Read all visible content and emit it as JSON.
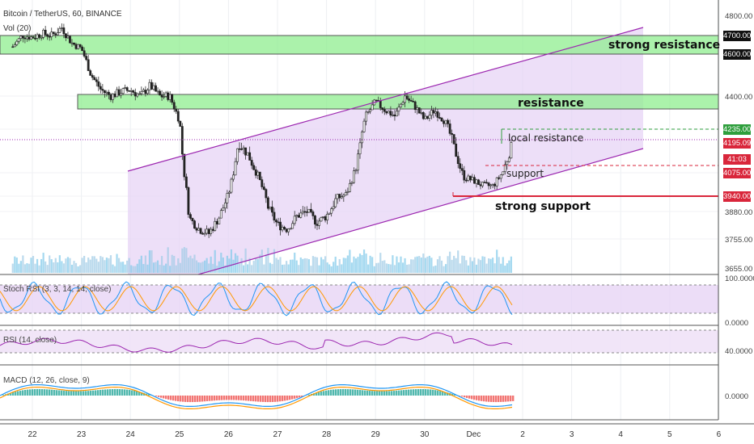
{
  "header": {
    "title": "Bitcoin / TetherUS, 60, BINANCE",
    "volume_label": "Vol (20)"
  },
  "chart_data": [
    {
      "type": "candlestick",
      "title": "Bitcoin / TetherUS, 60, BINANCE",
      "x_ticks": [
        "22",
        "23",
        "24",
        "25",
        "26",
        "27",
        "28",
        "29",
        "30",
        "Dec",
        "2",
        "3",
        "4",
        "5",
        "6"
      ],
      "y_ticks": [
        4800,
        4700,
        4600,
        4400,
        4235,
        4195.09,
        4075,
        3940,
        3880,
        3755,
        3655
      ],
      "ylim": [
        3620,
        4850
      ],
      "price_tags": [
        {
          "value": "4700.00",
          "color": "#111111"
        },
        {
          "value": "4600.00",
          "color": "#111111"
        },
        {
          "value": "4235.00",
          "color": "#2e9e3c"
        },
        {
          "value": "4195.09",
          "color": "#d9263b"
        },
        {
          "value": "41:03",
          "color": "#d9263b"
        },
        {
          "value": "4075.00",
          "color": "#d9263b"
        },
        {
          "value": "3940.00",
          "color": "#d9263b"
        }
      ],
      "zones": [
        {
          "label": "strong resistance",
          "low": 4600,
          "high": 4700,
          "color": "#90ee90"
        },
        {
          "label": "resistance",
          "low": 4360,
          "high": 4410,
          "color": "#90ee90"
        }
      ],
      "levels": [
        {
          "label": "local resistance",
          "value": 4235,
          "color": "#2e9e3c",
          "style": "dashed"
        },
        {
          "label": "support",
          "value": 4075,
          "color": "#d9263b",
          "style": "dashed"
        },
        {
          "label": "strong support",
          "value": 3940,
          "color": "#d9263b",
          "style": "solid"
        }
      ],
      "close_price": "4195.09",
      "close_approx": [
        [
          21.6,
          4640
        ],
        [
          21.8,
          4700
        ],
        [
          22.0,
          4690
        ],
        [
          22.2,
          4710
        ],
        [
          22.4,
          4700
        ],
        [
          22.6,
          4740
        ],
        [
          22.8,
          4660
        ],
        [
          23.0,
          4630
        ],
        [
          23.2,
          4500
        ],
        [
          23.4,
          4430
        ],
        [
          23.6,
          4400
        ],
        [
          23.8,
          4420
        ],
        [
          24.0,
          4430
        ],
        [
          24.2,
          4400
        ],
        [
          24.4,
          4450
        ],
        [
          24.6,
          4400
        ],
        [
          24.8,
          4400
        ],
        [
          25.0,
          4280
        ],
        [
          25.2,
          3850
        ],
        [
          25.4,
          3800
        ],
        [
          25.6,
          3780
        ],
        [
          25.8,
          3850
        ],
        [
          26.0,
          3950
        ],
        [
          26.2,
          4200
        ],
        [
          26.4,
          4150
        ],
        [
          26.6,
          4060
        ],
        [
          26.8,
          3900
        ],
        [
          27.0,
          3820
        ],
        [
          27.2,
          3800
        ],
        [
          27.4,
          3860
        ],
        [
          27.6,
          3880
        ],
        [
          27.8,
          3830
        ],
        [
          28.0,
          3860
        ],
        [
          28.2,
          3930
        ],
        [
          28.4,
          3950
        ],
        [
          28.6,
          4100
        ],
        [
          28.8,
          4300
        ],
        [
          29.0,
          4370
        ],
        [
          29.2,
          4330
        ],
        [
          29.4,
          4300
        ],
        [
          29.6,
          4400
        ],
        [
          29.8,
          4350
        ],
        [
          30.0,
          4280
        ],
        [
          30.2,
          4330
        ],
        [
          30.4,
          4280
        ],
        [
          30.6,
          4180
        ],
        [
          30.8,
          4050
        ],
        [
          31.0,
          4030
        ],
        [
          31.2,
          4000
        ],
        [
          31.4,
          4000
        ],
        [
          31.6,
          4080
        ],
        [
          31.8,
          4200
        ]
      ]
    },
    {
      "type": "line",
      "title": "Stoch RSI (3, 3, 14, 14, close)",
      "y_ticks": [
        "100.0000",
        "0.0000"
      ]
    },
    {
      "type": "line",
      "title": "RSI (14, close)",
      "y_ticks": [
        "40.0000"
      ]
    },
    {
      "type": "bar",
      "title": "MACD (12, 26, close, 9)",
      "y_ticks": [
        "0.0000"
      ]
    }
  ],
  "colors": {
    "up": "#26a69a",
    "down": "#ef5350",
    "channel": "#9c27b0",
    "channel_fill": "#e7d4f5",
    "zone": "#90ee90",
    "support": "#d9263b",
    "local_res": "#2e9e3c",
    "stoch_k": "#2196f3",
    "stoch_d": "#ff9800"
  }
}
